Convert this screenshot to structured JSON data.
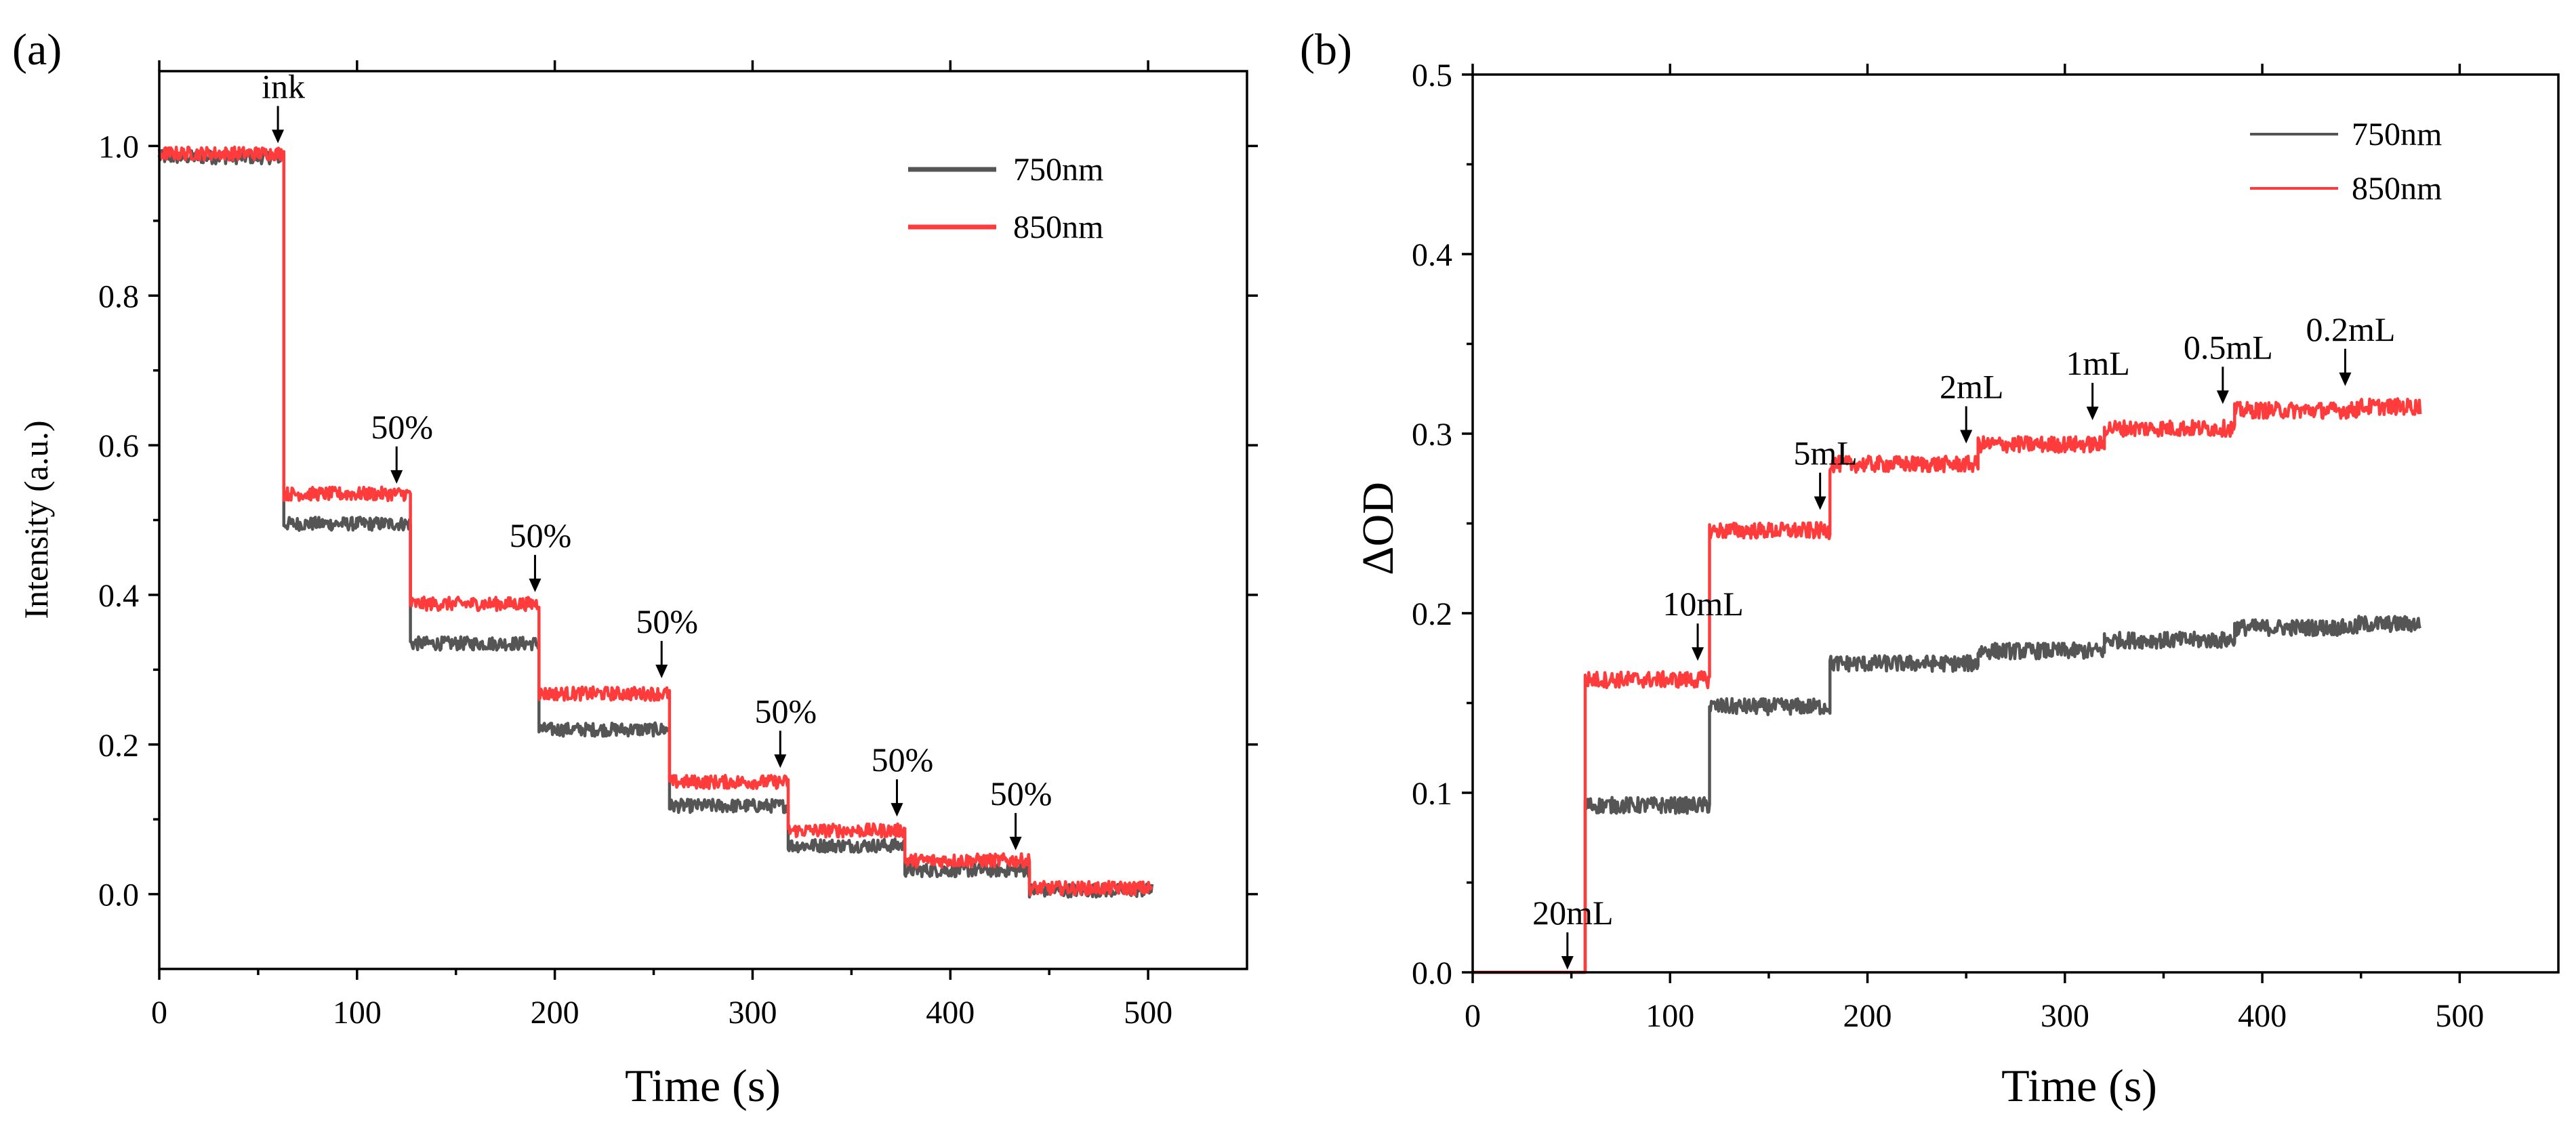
{
  "chart_data": [
    {
      "type": "line",
      "panel_label": "(a)",
      "xlabel": "Time (s)",
      "ylabel": "Intensity (a.u.)",
      "xlim": [
        0,
        550
      ],
      "ylim": [
        -0.1,
        1.1
      ],
      "xticks": [
        0,
        100,
        200,
        300,
        400,
        500
      ],
      "yticks": [
        0.0,
        0.2,
        0.4,
        0.6,
        0.8,
        1.0
      ],
      "xtick_labels": [
        "0",
        "100",
        "200",
        "300",
        "400",
        "500"
      ],
      "ytick_labels": [
        "0.0",
        "0.2",
        "0.4",
        "0.6",
        "0.8",
        "1.0"
      ],
      "legend_position": "top-right",
      "series": [
        {
          "name": "750nm",
          "color": "#555555",
          "steps": [
            {
              "x_start": 0,
              "x_end": 63,
              "y": 0.985
            },
            {
              "x_start": 63,
              "x_end": 127,
              "y": 0.495
            },
            {
              "x_start": 127,
              "x_end": 192,
              "y": 0.335
            },
            {
              "x_start": 192,
              "x_end": 258,
              "y": 0.22
            },
            {
              "x_start": 258,
              "x_end": 318,
              "y": 0.118
            },
            {
              "x_start": 318,
              "x_end": 377,
              "y": 0.065
            },
            {
              "x_start": 377,
              "x_end": 440,
              "y": 0.032
            },
            {
              "x_start": 440,
              "x_end": 502,
              "y": 0.005
            }
          ]
        },
        {
          "name": "850nm",
          "color": "#ff3b3b",
          "steps": [
            {
              "x_start": 0,
              "x_end": 63,
              "y": 0.99
            },
            {
              "x_start": 63,
              "x_end": 127,
              "y": 0.535
            },
            {
              "x_start": 127,
              "x_end": 192,
              "y": 0.388
            },
            {
              "x_start": 192,
              "x_end": 258,
              "y": 0.268
            },
            {
              "x_start": 258,
              "x_end": 318,
              "y": 0.15
            },
            {
              "x_start": 318,
              "x_end": 377,
              "y": 0.085
            },
            {
              "x_start": 377,
              "x_end": 440,
              "y": 0.045
            },
            {
              "x_start": 440,
              "x_end": 502,
              "y": 0.008
            }
          ]
        }
      ],
      "annotations": [
        {
          "text": "ink",
          "x": 60,
          "y_tip": 1.0
        },
        {
          "text": "50%",
          "x": 120,
          "y_tip": 0.545
        },
        {
          "text": "50%",
          "x": 190,
          "y_tip": 0.4
        },
        {
          "text": "50%",
          "x": 254,
          "y_tip": 0.285
        },
        {
          "text": "50%",
          "x": 314,
          "y_tip": 0.165
        },
        {
          "text": "50%",
          "x": 373,
          "y_tip": 0.1
        },
        {
          "text": "50%",
          "x": 433,
          "y_tip": 0.055
        }
      ]
    },
    {
      "type": "line",
      "panel_label": "(b)",
      "xlabel": "Time (s)",
      "ylabel": "ΔOD",
      "xlim": [
        0,
        550
      ],
      "ylim": [
        0,
        0.5
      ],
      "xticks": [
        0,
        100,
        200,
        300,
        400,
        500
      ],
      "yticks": [
        0.0,
        0.1,
        0.2,
        0.3,
        0.4,
        0.5
      ],
      "xtick_labels": [
        "0",
        "100",
        "200",
        "300",
        "400",
        "500"
      ],
      "ytick_labels": [
        "0.0",
        "0.1",
        "0.2",
        "0.3",
        "0.4",
        "0.5"
      ],
      "legend_position": "top-right",
      "series": [
        {
          "name": "750nm",
          "color": "#555555",
          "steps": [
            {
              "x_start": 0,
              "x_end": 57,
              "y": 0.0
            },
            {
              "x_start": 57,
              "x_end": 120,
              "y": 0.093
            },
            {
              "x_start": 120,
              "x_end": 181,
              "y": 0.148
            },
            {
              "x_start": 181,
              "x_end": 256,
              "y": 0.172
            },
            {
              "x_start": 256,
              "x_end": 320,
              "y": 0.179
            },
            {
              "x_start": 320,
              "x_end": 386,
              "y": 0.185
            },
            {
              "x_start": 386,
              "x_end": 448,
              "y": 0.192
            },
            {
              "x_start": 448,
              "x_end": 480,
              "y": 0.194
            }
          ]
        },
        {
          "name": "850nm",
          "color": "#ff3b3b",
          "steps": [
            {
              "x_start": 0,
              "x_end": 57,
              "y": 0.0
            },
            {
              "x_start": 57,
              "x_end": 120,
              "y": 0.163
            },
            {
              "x_start": 120,
              "x_end": 181,
              "y": 0.246
            },
            {
              "x_start": 181,
              "x_end": 256,
              "y": 0.283
            },
            {
              "x_start": 256,
              "x_end": 320,
              "y": 0.294
            },
            {
              "x_start": 320,
              "x_end": 386,
              "y": 0.303
            },
            {
              "x_start": 386,
              "x_end": 448,
              "y": 0.313
            },
            {
              "x_start": 448,
              "x_end": 480,
              "y": 0.315
            }
          ]
        }
      ],
      "annotations": [
        {
          "text": "20mL",
          "x": 48,
          "y_tip": 0.0
        },
        {
          "text": "10mL",
          "x": 114,
          "y_tip": 0.172
        },
        {
          "text": "5mL",
          "x": 176,
          "y_tip": 0.256
        },
        {
          "text": "2mL",
          "x": 250,
          "y_tip": 0.293
        },
        {
          "text": "1mL",
          "x": 314,
          "y_tip": 0.306
        },
        {
          "text": "0.5mL",
          "x": 380,
          "y_tip": 0.315
        },
        {
          "text": "0.2mL",
          "x": 442,
          "y_tip": 0.325
        }
      ]
    }
  ]
}
